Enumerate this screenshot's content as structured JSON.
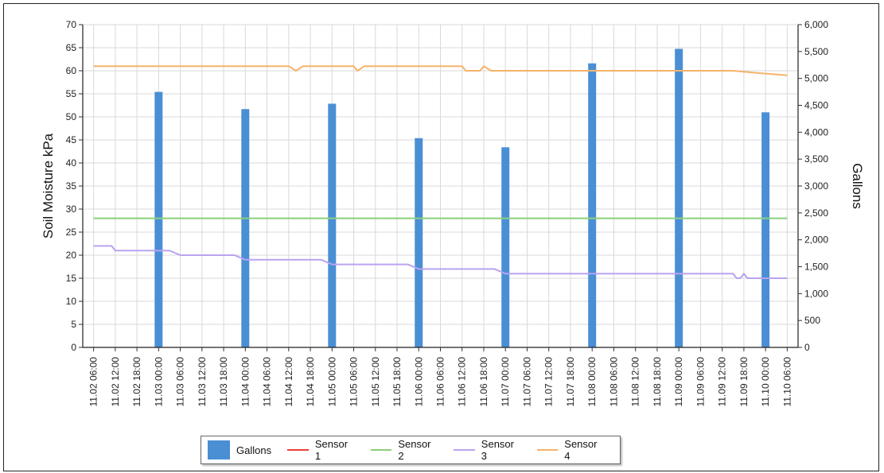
{
  "chart_data": {
    "type": "bar+line",
    "y_left_label": "Soil Moisture kPa",
    "y_right_label": "Gallons",
    "y_left_ticks": [
      "0",
      "5",
      "10",
      "15",
      "20",
      "25",
      "30",
      "35",
      "40",
      "45",
      "50",
      "55",
      "60",
      "65",
      "70"
    ],
    "y_right_ticks": [
      "0",
      "500",
      "1,000",
      "1,500",
      "2,000",
      "2,500",
      "3,000",
      "3,500",
      "4,000",
      "4,500",
      "5,000",
      "5,500",
      "6,000"
    ],
    "ylim_left": [
      0,
      70
    ],
    "ylim_right": [
      0,
      6000
    ],
    "x_ticks": [
      "11.02 06:00",
      "11.02 12:00",
      "11.02 18:00",
      "11.03 00:00",
      "11.03 06:00",
      "11.03 12:00",
      "11.03 18:00",
      "11.04 00:00",
      "11.04 06:00",
      "11.04 12:00",
      "11.04 18:00",
      "11.05 00:00",
      "11.05 06:00",
      "11.05 12:00",
      "11.05 18:00",
      "11.06 00:00",
      "11.06 06:00",
      "11.06 12:00",
      "11.06 18:00",
      "11.07 00:00",
      "11.07 06:00",
      "11.07 12:00",
      "11.07 18:00",
      "11.08 00:00",
      "11.08 06:00",
      "11.08 12:00",
      "11.08 18:00",
      "11.09 00:00",
      "11.09 06:00",
      "11.09 12:00",
      "11.09 18:00",
      "11.10 00:00",
      "11.10 06:00"
    ],
    "bars": {
      "name": "Gallons",
      "color": "#4a8fd4",
      "axis": "right",
      "x": [
        "11.03 00:00",
        "11.04 00:00",
        "11.05 00:00",
        "11.06 00:00",
        "11.07 00:00",
        "11.08 00:00",
        "11.09 00:00",
        "11.10 00:00"
      ],
      "values": [
        4750,
        4430,
        4530,
        3890,
        3720,
        5280,
        5550,
        4370
      ]
    },
    "series": [
      {
        "name": "Sensor 1",
        "color": "#e8403a",
        "axis": "left",
        "points": []
      },
      {
        "name": "Sensor 2",
        "color": "#8ad07a",
        "axis": "left",
        "points": [
          [
            "11.02 06:00",
            28
          ],
          [
            "11.10 06:00",
            28
          ]
        ]
      },
      {
        "name": "Sensor 3",
        "color": "#b9a3f0",
        "axis": "left",
        "points": [
          [
            "11.02 06:00",
            22
          ],
          [
            "11.02 11:00",
            22
          ],
          [
            "11.02 12:00",
            21
          ],
          [
            "11.03 03:00",
            21
          ],
          [
            "11.03 06:00",
            20
          ],
          [
            "11.03 21:00",
            20
          ],
          [
            "11.04 00:00",
            19
          ],
          [
            "11.04 21:00",
            19
          ],
          [
            "11.05 00:00",
            18
          ],
          [
            "11.05 21:00",
            18
          ],
          [
            "11.06 00:00",
            17
          ],
          [
            "11.06 21:00",
            17
          ],
          [
            "11.07 00:00",
            16
          ],
          [
            "11.09 15:00",
            16
          ],
          [
            "11.09 16:00",
            15
          ],
          [
            "11.09 17:00",
            15
          ],
          [
            "11.09 18:00",
            16
          ],
          [
            "11.09 19:00",
            15
          ],
          [
            "11.10 06:00",
            15
          ]
        ]
      },
      {
        "name": "Sensor 4",
        "color": "#f5b36a",
        "axis": "left",
        "points": [
          [
            "11.02 06:00",
            61
          ],
          [
            "11.04 12:00",
            61
          ],
          [
            "11.04 14:00",
            60
          ],
          [
            "11.04 16:00",
            61
          ],
          [
            "11.05 06:00",
            61
          ],
          [
            "11.05 07:00",
            60
          ],
          [
            "11.05 09:00",
            61
          ],
          [
            "11.06 12:00",
            61
          ],
          [
            "11.06 13:00",
            60
          ],
          [
            "11.06 17:00",
            60
          ],
          [
            "11.06 18:00",
            61
          ],
          [
            "11.06 20:00",
            60
          ],
          [
            "11.09 15:00",
            60
          ],
          [
            "11.09 22:00",
            59.5
          ],
          [
            "11.10 06:00",
            59
          ]
        ]
      }
    ],
    "legend": [
      "Gallons",
      "Sensor 1",
      "Sensor 2",
      "Sensor 3",
      "Sensor 4"
    ],
    "legend_position": "bottom",
    "grid": true
  }
}
